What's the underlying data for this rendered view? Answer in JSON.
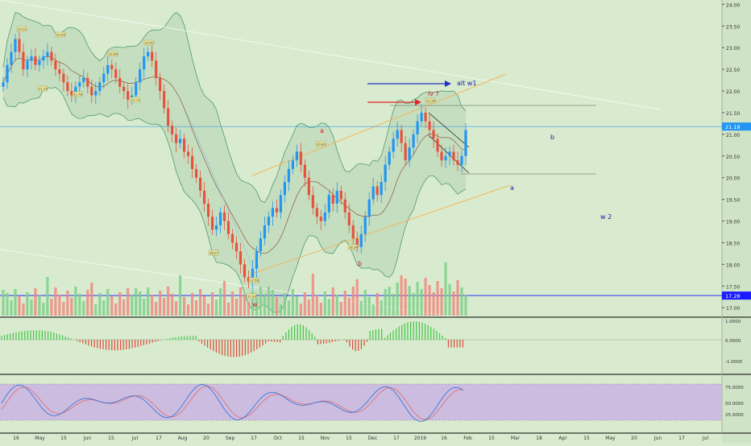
{
  "chart_data": {
    "type": "candlestick",
    "price_axis": {
      "ticks": [
        "24.00",
        "23.50",
        "23.00",
        "22.50",
        "22.00",
        "21.50",
        "21.00",
        "20.50",
        "20.00",
        "19.50",
        "19.00",
        "18.50",
        "18.00",
        "17.50",
        "17.00"
      ],
      "ticks_num": [
        24.0,
        23.5,
        23.0,
        22.5,
        22.0,
        21.5,
        21.0,
        20.5,
        20.0,
        19.5,
        19.0,
        18.5,
        18.0,
        17.5,
        17.0
      ],
      "range": [
        16.8,
        24.1
      ]
    },
    "price_markers": [
      {
        "label": "21.18",
        "value": 21.18,
        "color": "#2196f3"
      },
      {
        "label": "17.28",
        "value": 17.28,
        "color": "#1a1aff"
      }
    ],
    "time_axis": {
      "labels": [
        "16",
        "May",
        "15",
        "Jun",
        "15",
        "Jul",
        "17",
        "Aug",
        "20",
        "Sep",
        "17",
        "Oct",
        "15",
        "Nov",
        "15",
        "Dec",
        "17",
        "2019",
        "16",
        "Feb",
        "15",
        "Mar",
        "18",
        "Apr",
        "15",
        "May",
        "20",
        "Jun",
        "17",
        "Jul"
      ]
    },
    "close_series": [
      22.2,
      22.6,
      22.9,
      23.2,
      22.9,
      22.5,
      22.7,
      22.8,
      22.6,
      22.7,
      22.8,
      22.9,
      22.7,
      22.5,
      22.4,
      22.2,
      22.0,
      21.9,
      22.1,
      22.2,
      22.3,
      22.1,
      21.9,
      22.0,
      22.2,
      22.4,
      22.6,
      22.5,
      22.3,
      22.1,
      22.0,
      21.8,
      21.9,
      22.2,
      22.5,
      22.8,
      22.9,
      22.7,
      22.3,
      22.0,
      21.6,
      21.2,
      21.0,
      20.8,
      20.9,
      20.6,
      20.5,
      20.2,
      20.0,
      19.7,
      19.4,
      19.1,
      18.8,
      18.9,
      19.2,
      19.0,
      18.7,
      18.5,
      18.3,
      18.0,
      17.7,
      17.6,
      17.9,
      18.3,
      18.6,
      18.9,
      19.1,
      19.3,
      19.2,
      19.6,
      19.9,
      20.2,
      20.4,
      20.6,
      20.3,
      20.0,
      19.6,
      19.3,
      19.1,
      19.0,
      19.2,
      19.6,
      19.4,
      19.7,
      19.5,
      19.2,
      18.9,
      18.6,
      18.4,
      18.7,
      19.1,
      19.5,
      19.8,
      19.6,
      19.9,
      20.3,
      20.6,
      20.9,
      21.1,
      20.8,
      20.4,
      20.7,
      21.0,
      21.3,
      21.5,
      21.3,
      21.1,
      20.9,
      20.6,
      20.4,
      20.5,
      20.6,
      20.4,
      20.3,
      20.5,
      21.1
    ],
    "annotations": [
      "a",
      "iv ?",
      "alt w1",
      "b",
      "w",
      "b",
      "a",
      "w 2"
    ],
    "pivot_labels": [
      "23.11",
      "22.90",
      "22.65",
      "22.67",
      "21.29",
      "21.78",
      "21.71",
      "20.83",
      "17.56",
      "18.27",
      "18.38",
      "21.56",
      "17.20"
    ],
    "indicator_panels": [
      {
        "name": "histogram oscillator",
        "ticks": [
          "1.0000",
          "0.0000",
          "-1.0000"
        ]
      },
      {
        "name": "stochastic",
        "ticks": [
          "75.0000",
          "50.0000",
          "25.0000"
        ]
      }
    ],
    "colors": {
      "background": "#d8ebcf",
      "up": "#2196f3",
      "down": "#e5533f",
      "band_fill": "#bfd9b9",
      "band_line": "#4f9a6d",
      "channel": "#f2b65e",
      "histogram_up": "#42c545",
      "histogram_down": "#e04a3a",
      "stoch_fill": "#c9b4e3",
      "stoch_k": "#2f6fd8",
      "stoch_d": "#e26a6a",
      "blue_arrow": "#1f33c4",
      "red_arrow": "#e52525",
      "annotation_red": "#cc2222",
      "annotation_blue": "#1a1a9e"
    }
  }
}
